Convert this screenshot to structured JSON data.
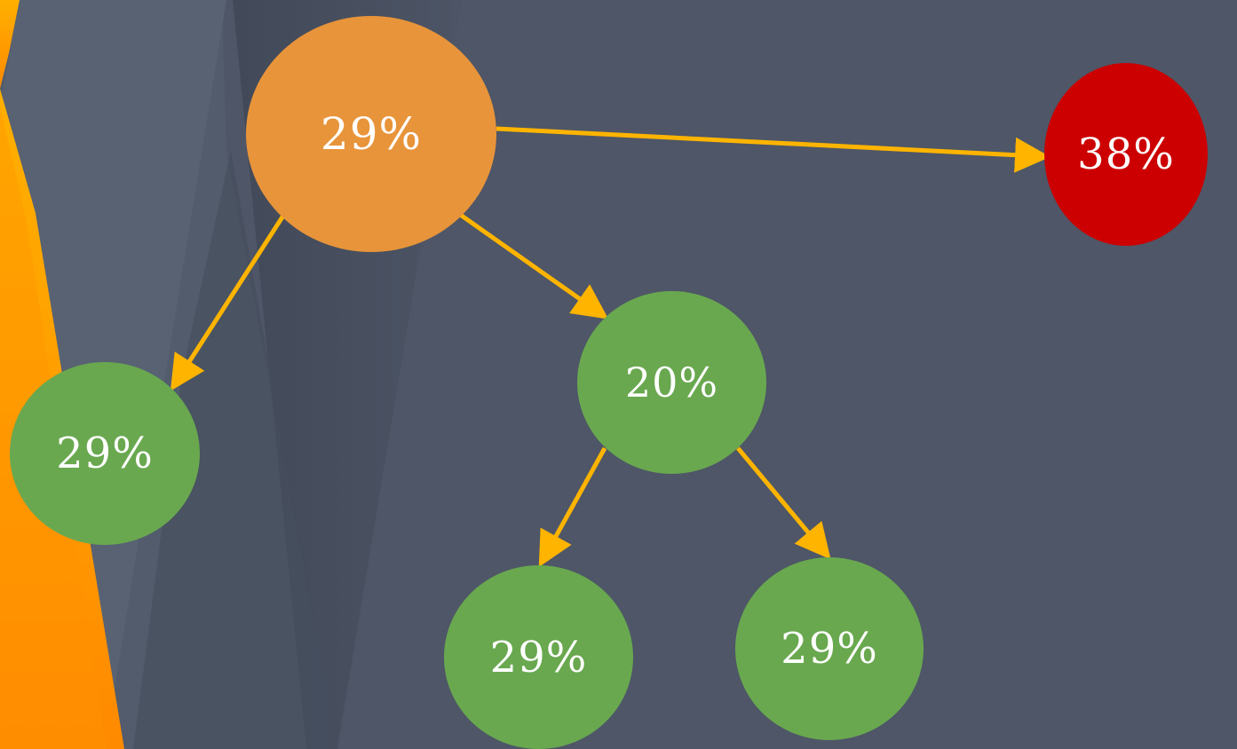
{
  "colors": {
    "background": "#525c6d",
    "accent_orange": "#ff9a00",
    "arrow": "#ffb400",
    "node_orange": "#e8943a",
    "node_red": "#cc0000",
    "node_green": "#69a84f",
    "text": "#ffffff"
  },
  "nodes": {
    "root": {
      "label": "29%",
      "color": "#e8943a"
    },
    "right": {
      "label": "38%",
      "color": "#cc0000"
    },
    "left": {
      "label": "29%",
      "color": "#69a84f"
    },
    "middle": {
      "label": "20%",
      "color": "#69a84f"
    },
    "bottom_left": {
      "label": "29%",
      "color": "#69a84f"
    },
    "bottom_right": {
      "label": "29%",
      "color": "#69a84f"
    }
  },
  "edges": [
    {
      "from": "root",
      "to": "right"
    },
    {
      "from": "root",
      "to": "left"
    },
    {
      "from": "root",
      "to": "middle"
    },
    {
      "from": "middle",
      "to": "bottom_left"
    },
    {
      "from": "middle",
      "to": "bottom_right"
    }
  ]
}
